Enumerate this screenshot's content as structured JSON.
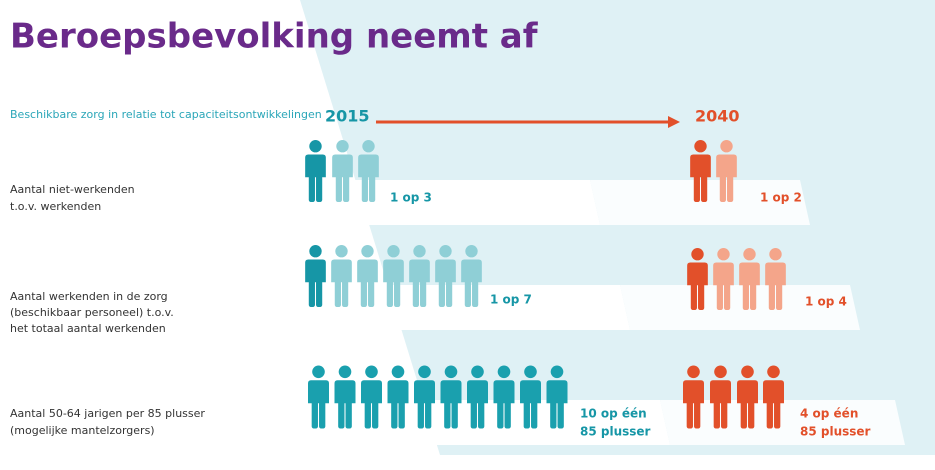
{
  "header": {
    "title": "Beroepsbevolking neemt af",
    "subtitle": "Beschikbare zorg in relatie tot capaciteitsontwikkelingen"
  },
  "years": [
    "2015",
    "2040"
  ],
  "rows": [
    {
      "label": [
        "Aantal niet-werkenden",
        "t.o.v. werkenden"
      ],
      "ratio_2015": [
        "1 op 3"
      ],
      "ratio_2040": [
        "1 op 2"
      ]
    },
    {
      "label": [
        "Aantal werkenden in de zorg",
        "(beschikbaar personeel) t.o.v.",
        "het totaal aantal werkenden"
      ],
      "ratio_2015": [
        "1 op 7"
      ],
      "ratio_2040": [
        "1 op 4"
      ]
    },
    {
      "label": [
        "Aantal 50-64 jarigen per 85 plusser",
        "(mogelijke mantelzorgers)"
      ],
      "ratio_2015": [
        "10 op één",
        "85 plusser"
      ],
      "ratio_2040": [
        "4 op één",
        "85 plusser"
      ]
    }
  ]
}
